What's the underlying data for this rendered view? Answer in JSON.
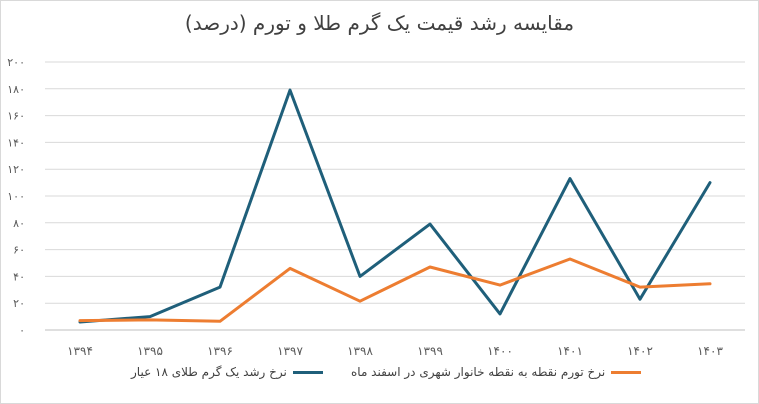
{
  "chart_data": {
    "type": "line",
    "title": "مقایسه رشد قیمت یک گرم طلا و تورم (درصد)",
    "categories": [
      "۱۳۹۴",
      "۱۳۹۵",
      "۱۳۹۶",
      "۱۳۹۷",
      "۱۳۹۸",
      "۱۳۹۹",
      "۱۴۰۰",
      "۱۴۰۱",
      "۱۴۰۲",
      "۱۴۰۳"
    ],
    "ylim": [
      0,
      200
    ],
    "yticks": [
      0,
      20,
      40,
      60,
      80,
      100,
      120,
      140,
      160,
      180,
      200
    ],
    "ytick_labels": [
      "۰",
      "۲۰",
      "۴۰",
      "۶۰",
      "۸۰",
      "۱۰۰",
      "۱۲۰",
      "۱۴۰",
      "۱۶۰",
      "۱۸۰",
      "۲۰۰"
    ],
    "grid": true,
    "legend_position": "bottom",
    "series": [
      {
        "name": "نرخ رشد  یک گرم طلای ۱۸ عیار",
        "color": "#1f5f7a",
        "values": [
          6,
          10,
          32,
          179,
          40,
          79,
          12,
          113,
          23,
          110
        ]
      },
      {
        "name": "نرخ تورم نقطه به نقطه خانوار شهری در اسفند ماه",
        "color": "#ed7d31",
        "values": [
          7,
          7.5,
          6.5,
          46,
          21.5,
          47,
          33.5,
          53,
          32,
          34.5
        ]
      }
    ]
  }
}
